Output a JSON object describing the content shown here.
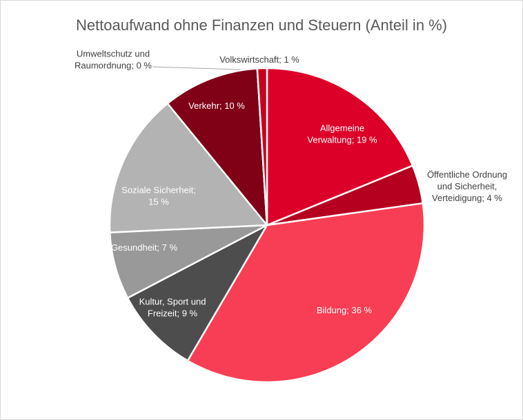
{
  "chart_data": {
    "type": "pie",
    "title": "Nettoaufwand ohne Finanzen und Steuern (Anteil in %)",
    "values": [
      19,
      4,
      36,
      9,
      7,
      15,
      10,
      0,
      1
    ],
    "value_labels": [
      "Allgemeine\nVerwaltung; 19 %",
      "Öffentliche Ordnung\nund Sicherheit,\nVerteidigung; 4 %",
      "Bildung; 36 %",
      "Kultur, Sport und\nFreizeit; 9 %",
      "Gesundheit; 7 %",
      "Soziale Sicherheit;\n15 %",
      "Verkehr; 10 %",
      "Umweltschutz und\nRaumordnung; 0 %",
      "Volkswirtschaft; 1 %"
    ],
    "colors": [
      "#dc0028",
      "#b5001f",
      "#f73e54",
      "#4d4d4d",
      "#999999",
      "#b3b3b3",
      "#800016",
      "#d0d0d0",
      "#c8001f"
    ]
  }
}
